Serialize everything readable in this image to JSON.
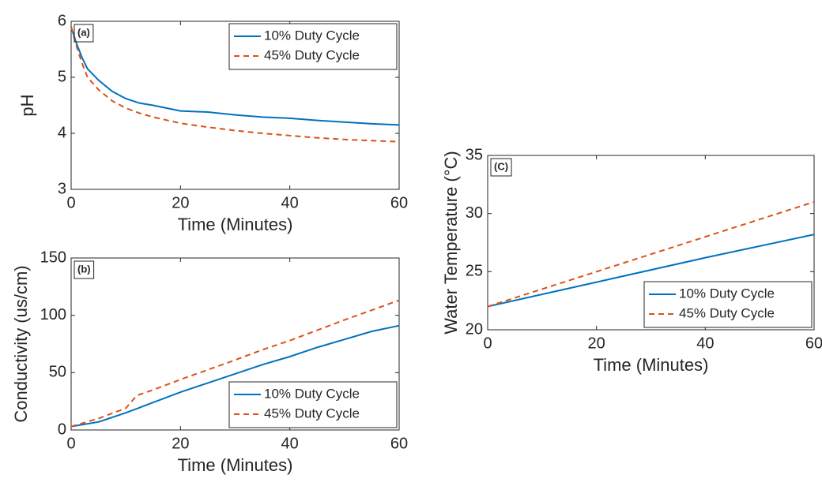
{
  "chart_data": [
    {
      "type": "line",
      "panel_label": "(a)",
      "xlabel": "Time (Minutes)",
      "ylabel": "pH",
      "x": [
        0,
        1,
        2,
        3,
        5,
        7.5,
        10,
        12.5,
        15,
        20,
        25,
        30,
        35,
        40,
        45,
        50,
        55,
        60
      ],
      "series": [
        {
          "name": "10% Duty Cycle",
          "color": "#0072bd",
          "linestyle": "solid",
          "values": [
            5.9,
            5.6,
            5.35,
            5.15,
            4.95,
            4.75,
            4.62,
            4.54,
            4.5,
            4.4,
            4.38,
            4.33,
            4.29,
            4.27,
            4.23,
            4.2,
            4.17,
            4.15
          ]
        },
        {
          "name": "45% Duty Cycle",
          "color": "#d95319",
          "linestyle": "dashed",
          "values": [
            5.9,
            5.55,
            5.25,
            5.0,
            4.78,
            4.58,
            4.45,
            4.36,
            4.29,
            4.18,
            4.11,
            4.05,
            4.0,
            3.96,
            3.92,
            3.89,
            3.87,
            3.85
          ]
        }
      ],
      "xlim": [
        0,
        60
      ],
      "xticks": [
        0,
        20,
        40,
        60
      ],
      "ylim": [
        3,
        6
      ],
      "yticks": [
        3,
        4,
        5,
        6
      ],
      "grid": false,
      "legend": "upper right"
    },
    {
      "type": "line",
      "panel_label": "(b)",
      "xlabel": "Time (Minutes)",
      "ylabel": "Conductivity (us/cm)",
      "x": [
        0,
        5,
        10,
        12,
        15,
        20,
        25,
        30,
        35,
        40,
        45,
        50,
        55,
        59,
        60
      ],
      "series": [
        {
          "name": "10% Duty Cycle",
          "color": "#0072bd",
          "linestyle": "solid",
          "values": [
            3,
            7,
            15,
            18.5,
            24,
            33,
            41,
            49,
            57,
            64,
            72,
            79,
            86,
            90,
            91
          ]
        },
        {
          "name": "45% Duty Cycle",
          "color": "#d95319",
          "linestyle": "dashed",
          "values": [
            3,
            10,
            19,
            30,
            35,
            44,
            52.5,
            61,
            70,
            78,
            87,
            96,
            104.5,
            111.5,
            113
          ]
        }
      ],
      "xlim": [
        0,
        60
      ],
      "xticks": [
        0,
        20,
        40,
        60
      ],
      "ylim": [
        0,
        150
      ],
      "yticks": [
        0,
        50,
        100,
        150
      ],
      "grid": false,
      "legend": "lower right"
    },
    {
      "type": "line",
      "panel_label": "(C)",
      "xlabel": "Time (Minutes)",
      "ylabel": "Water Temperature (°C)",
      "x": [
        0,
        20,
        40,
        60
      ],
      "series": [
        {
          "name": "10% Duty Cycle",
          "color": "#0072bd",
          "linestyle": "solid",
          "values": [
            22,
            24.1,
            26.2,
            28.2
          ]
        },
        {
          "name": "45% Duty Cycle",
          "color": "#d95319",
          "linestyle": "dashed",
          "values": [
            22,
            25.0,
            28.0,
            31.0
          ]
        }
      ],
      "xlim": [
        0,
        60
      ],
      "xticks": [
        0,
        20,
        40,
        60
      ],
      "ylim": [
        20,
        35
      ],
      "yticks": [
        20,
        25,
        30,
        35
      ],
      "grid": false,
      "legend": "lower right"
    }
  ]
}
